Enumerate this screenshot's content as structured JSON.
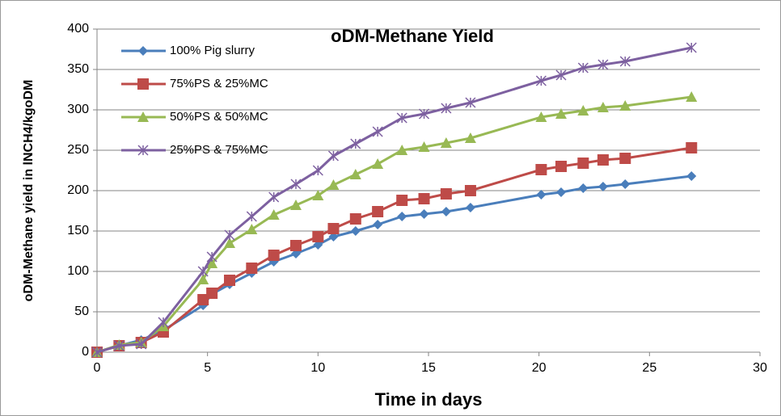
{
  "chart_data": {
    "type": "line",
    "title": "oDM-Methane Yield",
    "x_label": "Time in days",
    "y_label": "oDM-Methane yield in lNCH4/kgoDM",
    "x": [
      0,
      1,
      2,
      3,
      4.8,
      5.2,
      6,
      7,
      8,
      9,
      10,
      10.7,
      11.7,
      12.7,
      13.8,
      14.8,
      15.8,
      16.9,
      20.1,
      21,
      22,
      22.9,
      23.9,
      26.9
    ],
    "series": [
      {
        "name": "100% Pig slurry",
        "color": "#4a7ebb",
        "marker": "diamond",
        "values": [
          0,
          8,
          15,
          27,
          58,
          72,
          84,
          98,
          112,
          122,
          133,
          143,
          150,
          158,
          168,
          171,
          174,
          179,
          195,
          198,
          203,
          205,
          208,
          218
        ]
      },
      {
        "name": "75%PS & 25%MC",
        "color": "#be4b48",
        "marker": "square",
        "values": [
          0,
          8,
          12,
          25,
          65,
          73,
          89,
          104,
          120,
          132,
          143,
          153,
          165,
          174,
          188,
          190,
          196,
          200,
          226,
          230,
          234,
          238,
          240,
          253
        ]
      },
      {
        "name": "50%PS & 50%MC",
        "color": "#98b954",
        "marker": "triangle",
        "values": [
          0,
          9,
          12,
          32,
          90,
          110,
          135,
          152,
          170,
          182,
          194,
          207,
          220,
          233,
          250,
          254,
          259,
          265,
          291,
          295,
          299,
          303,
          305,
          316
        ]
      },
      {
        "name": "25%PS & 75%MC",
        "color": "#7d60a0",
        "marker": "star",
        "values": [
          0,
          8,
          10,
          37,
          100,
          118,
          145,
          168,
          192,
          208,
          225,
          243,
          258,
          273,
          290,
          295,
          302,
          309,
          336,
          343,
          352,
          356,
          360,
          377
        ]
      }
    ],
    "xlim": [
      0,
      30
    ],
    "xticks": [
      0,
      5,
      10,
      15,
      20,
      25,
      30
    ],
    "ylim": [
      0,
      400
    ],
    "yticks": [
      0,
      50,
      100,
      150,
      200,
      250,
      300,
      350,
      400
    ],
    "grid": true
  }
}
